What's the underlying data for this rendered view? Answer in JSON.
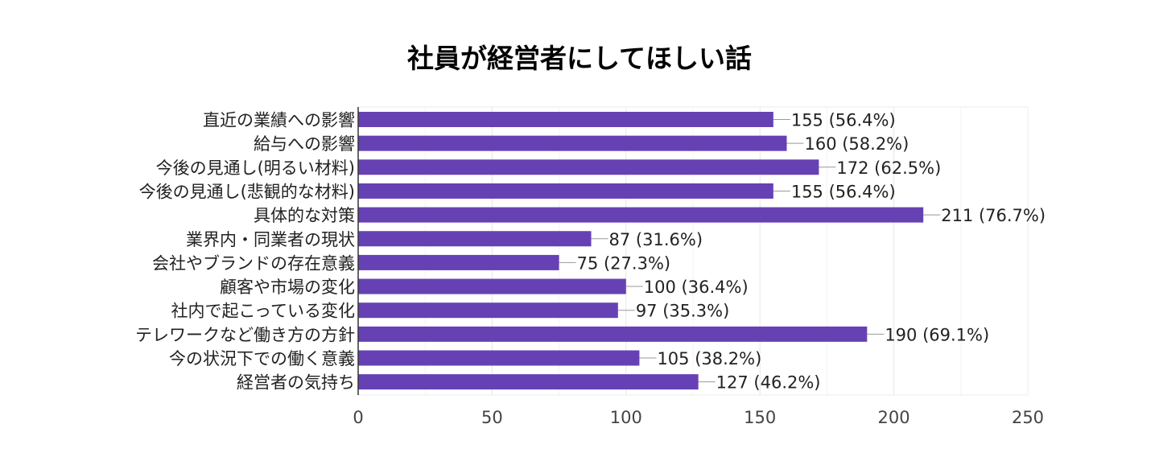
{
  "chart_data": {
    "type": "bar",
    "orientation": "horizontal",
    "title": "社員が経営者にしてほしい話",
    "xlabel": "",
    "ylabel": "",
    "categories": [
      "直近の業績への影響",
      "給与への影響",
      "今後の見通し(明るい材料)",
      "今後の見通し(悲観的な材料)",
      "具体的な対策",
      "業界内・同業者の現状",
      "会社やブランドの存在意義",
      "顧客や市場の変化",
      "社内で起こっている変化",
      "テレワークなど働き方の方針",
      "今の状況下での働く意義",
      "経営者の気持ち"
    ],
    "values": [
      155,
      160,
      172,
      155,
      211,
      87,
      75,
      100,
      97,
      190,
      105,
      127
    ],
    "value_labels": [
      "155 (56.4%)",
      "160 (58.2%)",
      "172 (62.5%)",
      "155 (56.4%)",
      "211 (76.7%)",
      "87 (31.6%)",
      "75 (27.3%)",
      "100 (36.4%)",
      "97 (35.3%)",
      "190 (69.1%)",
      "105 (38.2%)",
      "127 (46.2%)"
    ],
    "xlim": [
      0,
      250
    ],
    "x_ticks": [
      0,
      50,
      100,
      150,
      200,
      250
    ],
    "bar_color": "#6641b4",
    "grid": true,
    "legend": "none"
  }
}
